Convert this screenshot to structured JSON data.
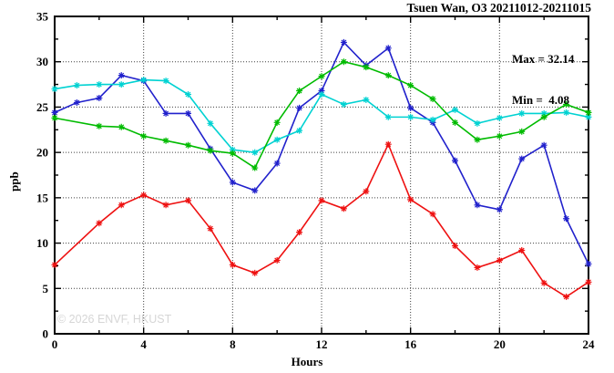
{
  "chart_data": {
    "type": "line",
    "title": "Tsuen Wan, O3 20211012-20211015",
    "xlabel": "Hours",
    "ylabel": "ppb",
    "xlim": [
      0,
      24
    ],
    "ylim": [
      0,
      35
    ],
    "x_major_ticks": [
      0,
      4,
      8,
      12,
      16,
      20,
      24
    ],
    "x_minor_ticks": [
      2,
      6,
      10,
      14,
      18,
      22
    ],
    "y_major_ticks": [
      0,
      5,
      10,
      15,
      20,
      25,
      30,
      35
    ],
    "y_minor_ticks": [
      2.5,
      7.5,
      12.5,
      17.5,
      22.5,
      27.5,
      32.5
    ],
    "grid": {
      "style": "dotted",
      "color": "#404040",
      "x_lines": [
        4,
        8,
        12,
        16,
        20
      ],
      "y_lines": [
        5,
        10,
        15,
        20,
        25,
        30
      ]
    },
    "legend": "none",
    "annotation": {
      "max_label": "Max = 32.14",
      "min_label": "Min =  4.08",
      "max_value": 32.14,
      "min_value": 4.08
    },
    "watermark": "© 2026 ENVF, HKUST",
    "marker": "asterisk",
    "series": [
      {
        "name": "blue",
        "color": "#2121cc",
        "hours": [
          0,
          1,
          2,
          3,
          4,
          5,
          6,
          7,
          8,
          9,
          10,
          11,
          12,
          13,
          14,
          15,
          16,
          17,
          18,
          19,
          20,
          21,
          22,
          23,
          24
        ],
        "values": [
          24.4,
          25.5,
          26.0,
          28.5,
          27.9,
          24.3,
          24.3,
          20.4,
          16.7,
          15.8,
          18.8,
          24.9,
          26.8,
          32.14,
          29.6,
          31.5,
          24.9,
          23.3,
          19.1,
          14.2,
          13.7,
          19.3,
          20.8,
          12.7,
          7.7
        ]
      },
      {
        "name": "cyan",
        "color": "#00d2d2",
        "hours": [
          0,
          1,
          2,
          3,
          4,
          5,
          6,
          7,
          8,
          9,
          10,
          11,
          12,
          13,
          14,
          15,
          16,
          17,
          18,
          19,
          20,
          21,
          22,
          23,
          24
        ],
        "values": [
          27.0,
          27.4,
          27.5,
          27.5,
          28.0,
          27.9,
          26.4,
          23.2,
          20.3,
          20.0,
          21.4,
          22.4,
          26.4,
          25.3,
          25.8,
          23.9,
          23.9,
          23.6,
          24.7,
          23.2,
          23.8,
          24.3,
          24.3,
          24.4,
          23.9
        ]
      },
      {
        "name": "green",
        "color": "#00bb00",
        "hours": [
          0,
          2,
          3,
          4,
          5,
          6,
          7,
          8,
          9,
          10,
          11,
          12,
          13,
          14,
          15,
          16,
          17,
          18,
          19,
          20,
          21,
          22,
          23,
          24
        ],
        "values": [
          23.8,
          22.9,
          22.8,
          21.8,
          21.3,
          20.8,
          20.2,
          19.9,
          18.3,
          23.3,
          26.8,
          28.4,
          30.0,
          29.4,
          28.5,
          27.4,
          25.9,
          23.3,
          21.4,
          21.8,
          22.3,
          23.9,
          25.3,
          24.4
        ]
      },
      {
        "name": "red",
        "color": "#ee1111",
        "hours": [
          0,
          2,
          3,
          4,
          5,
          6,
          7,
          8,
          9,
          10,
          11,
          12,
          13,
          14,
          15,
          16,
          17,
          18,
          19,
          20,
          21,
          22,
          23,
          24
        ],
        "values": [
          7.6,
          12.2,
          14.2,
          15.3,
          14.2,
          14.7,
          11.6,
          7.6,
          6.7,
          8.1,
          11.2,
          14.7,
          13.8,
          15.7,
          20.9,
          14.8,
          13.2,
          9.7,
          7.3,
          8.1,
          9.2,
          5.6,
          4.08,
          5.7
        ]
      }
    ]
  }
}
